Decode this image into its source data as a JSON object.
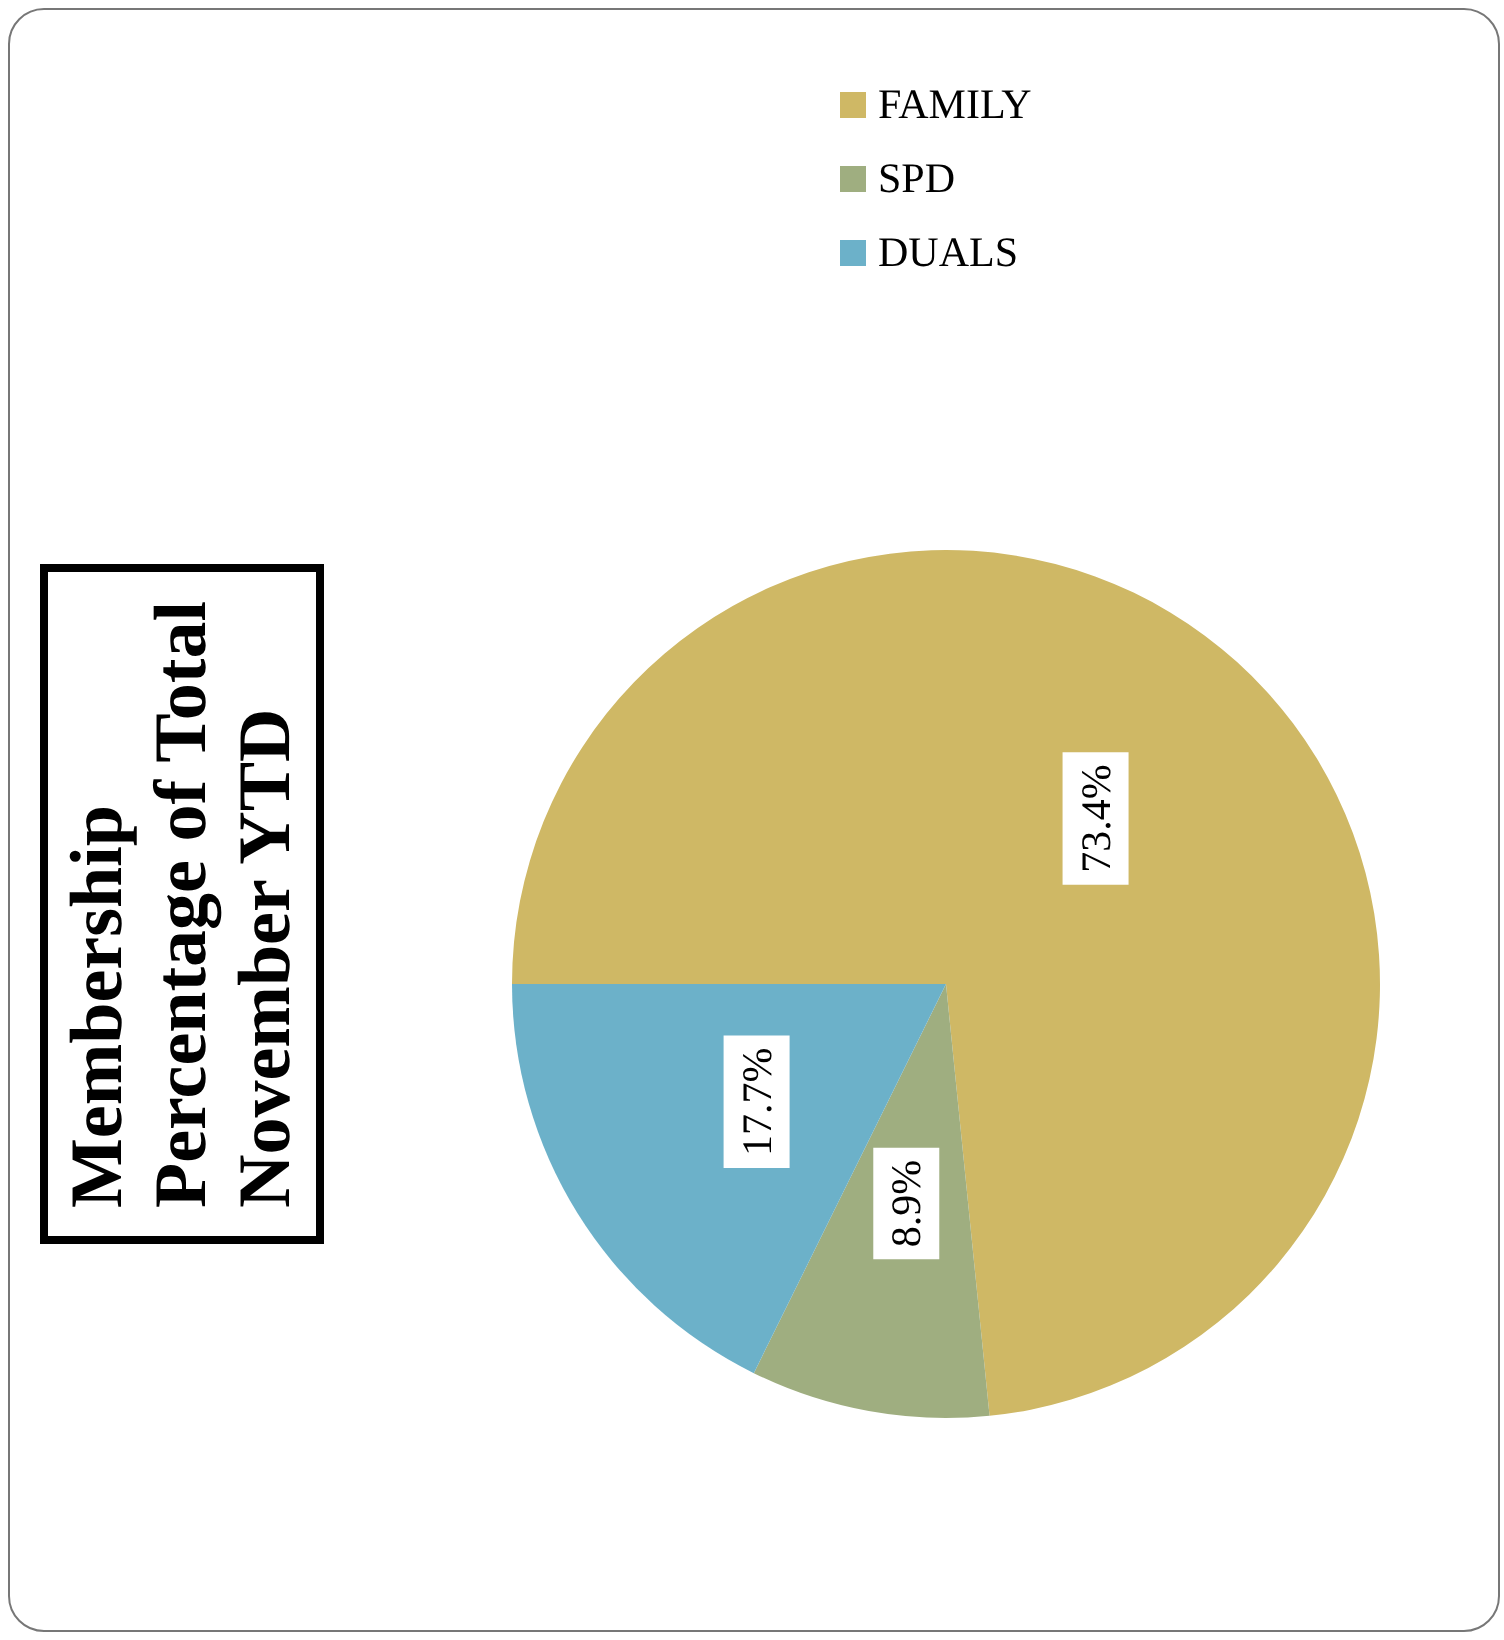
{
  "chart_data": {
    "type": "pie",
    "title": "Membership\nPercentage of Total\nNovember YTD",
    "categories": [
      "FAMILY",
      "SPD",
      "DUALS"
    ],
    "values": [
      73.4,
      8.9,
      17.7
    ],
    "colors": [
      "#cfb865",
      "#9fae80",
      "#6cb1c9"
    ],
    "value_labels": [
      "73.4%",
      "8.9%",
      "17.7%"
    ],
    "legend": "right"
  }
}
